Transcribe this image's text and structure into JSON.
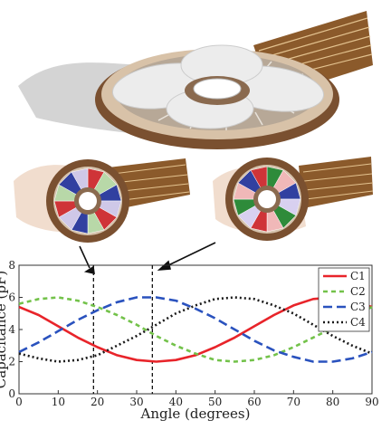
{
  "chart_data": {
    "type": "line",
    "xlabel": "Angle (degrees)",
    "ylabel": "Capacitance (pF)",
    "xlim": [
      0,
      90
    ],
    "ylim": [
      0,
      8
    ],
    "xticks": [
      "0",
      "10",
      "20",
      "30",
      "40",
      "50",
      "60",
      "70",
      "80",
      "90"
    ],
    "yticks": [
      "0",
      "2",
      "4",
      "6",
      "8"
    ],
    "legend_position": "top-right",
    "markers_at_angle": [
      19,
      34
    ],
    "series": [
      {
        "name": "C1",
        "color": "#e8242a",
        "dash": "solid",
        "x": [
          0,
          5,
          10,
          15,
          20,
          25,
          30,
          35,
          40,
          45,
          50,
          55,
          60,
          65,
          70,
          75,
          80,
          85,
          90
        ],
        "y": [
          5.4,
          4.9,
          4.2,
          3.5,
          2.9,
          2.4,
          2.1,
          2.0,
          2.1,
          2.4,
          2.9,
          3.5,
          4.2,
          4.9,
          5.5,
          5.9,
          6.0,
          5.8,
          5.4
        ]
      },
      {
        "name": "C2",
        "color": "#73c24a",
        "dash": "dashed",
        "x": [
          0,
          5,
          10,
          15,
          20,
          25,
          30,
          35,
          40,
          45,
          50,
          55,
          60,
          65,
          70,
          75,
          80,
          85,
          90
        ],
        "y": [
          5.6,
          5.9,
          6.0,
          5.8,
          5.4,
          4.9,
          4.3,
          3.6,
          3.0,
          2.5,
          2.1,
          2.0,
          2.1,
          2.4,
          2.9,
          3.5,
          4.1,
          4.8,
          5.4
        ]
      },
      {
        "name": "C3",
        "color": "#2a52be",
        "dash": "longdash",
        "x": [
          0,
          5,
          10,
          15,
          20,
          25,
          30,
          35,
          40,
          45,
          50,
          55,
          60,
          65,
          70,
          75,
          80,
          85,
          90
        ],
        "y": [
          2.6,
          3.2,
          3.9,
          4.6,
          5.2,
          5.7,
          6.0,
          6.0,
          5.8,
          5.3,
          4.7,
          4.0,
          3.3,
          2.7,
          2.3,
          2.0,
          2.0,
          2.2,
          2.6
        ]
      },
      {
        "name": "C4",
        "color": "#1a1a1a",
        "dash": "dotted",
        "x": [
          0,
          5,
          10,
          15,
          20,
          25,
          30,
          35,
          40,
          45,
          50,
          55,
          60,
          65,
          70,
          75,
          80,
          85,
          90
        ],
        "y": [
          2.5,
          2.2,
          2.0,
          2.1,
          2.4,
          3.0,
          3.6,
          4.3,
          5.0,
          5.5,
          5.9,
          6.0,
          5.9,
          5.5,
          5.0,
          4.3,
          3.6,
          3.0,
          2.5
        ]
      }
    ]
  }
}
